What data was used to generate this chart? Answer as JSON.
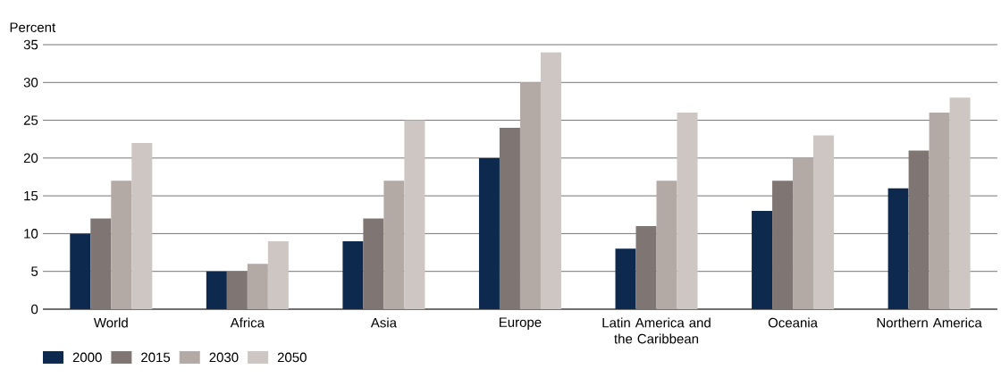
{
  "chart_data": {
    "type": "bar",
    "ylabel": "Percent",
    "categories": [
      "World",
      "Africa",
      "Asia",
      "Europe",
      "Latin America and the Caribbean",
      "Oceania",
      "Northern America"
    ],
    "series": [
      {
        "name": "2000",
        "color": "#0d2a4e",
        "values": [
          10,
          5,
          9,
          20,
          8,
          13,
          16
        ]
      },
      {
        "name": "2015",
        "color": "#7f7673",
        "values": [
          12,
          5,
          12,
          24,
          11,
          17,
          21
        ]
      },
      {
        "name": "2030",
        "color": "#b3a9a5",
        "values": [
          17,
          6,
          17,
          30,
          17,
          20,
          26
        ]
      },
      {
        "name": "2050",
        "color": "#cdc6c3",
        "values": [
          22,
          9,
          25,
          34,
          26,
          23,
          28
        ]
      }
    ],
    "ylim": [
      0,
      35
    ],
    "yticks": [
      0,
      5,
      10,
      15,
      20,
      25,
      30,
      35
    ],
    "grid": "y",
    "legend": "bottom left"
  }
}
